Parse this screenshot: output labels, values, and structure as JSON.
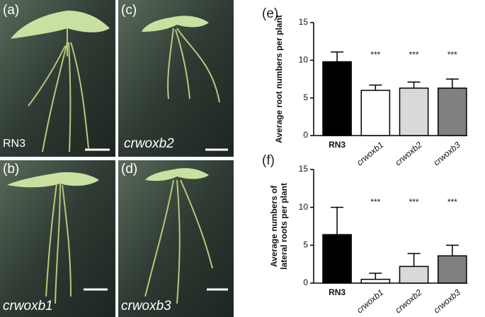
{
  "panels": [
    {
      "label": "(a)",
      "caption": "RN3"
    },
    {
      "label": "(c)",
      "caption": "crwoxb2"
    },
    {
      "label": "(b)",
      "caption": "crwoxb1"
    },
    {
      "label": "(d)",
      "caption": "crwoxb3"
    }
  ],
  "chart_data": [
    {
      "type": "bar",
      "label": "(e)",
      "ylabel": [
        "Average root numbers per plant"
      ],
      "categories": [
        "RN3",
        "crwoxb1",
        "crwoxb2",
        "crwoxb3"
      ],
      "values": [
        9.8,
        6.0,
        6.3,
        6.3
      ],
      "errors": [
        1.3,
        0.7,
        0.8,
        1.2
      ],
      "colors": [
        "#000000",
        "#ffffff",
        "#d9d9d9",
        "#808080"
      ],
      "annotations": [
        null,
        "***",
        "***",
        "***"
      ],
      "ylim": [
        0,
        15
      ],
      "yticks": [
        0,
        5,
        10,
        15
      ]
    },
    {
      "type": "bar",
      "label": "(f)",
      "ylabel": [
        "Average numbers of",
        "lateral roots per plant"
      ],
      "categories": [
        "RN3",
        "crwoxb1",
        "crwoxb2",
        "crwoxb3"
      ],
      "values": [
        6.4,
        0.5,
        2.2,
        3.6
      ],
      "errors": [
        3.6,
        0.8,
        1.7,
        1.4
      ],
      "colors": [
        "#000000",
        "#ffffff",
        "#d9d9d9",
        "#808080"
      ],
      "annotations": [
        null,
        "***",
        "***",
        "***"
      ],
      "ylim": [
        0,
        15
      ],
      "yticks": [
        0,
        5,
        10,
        15
      ]
    }
  ]
}
